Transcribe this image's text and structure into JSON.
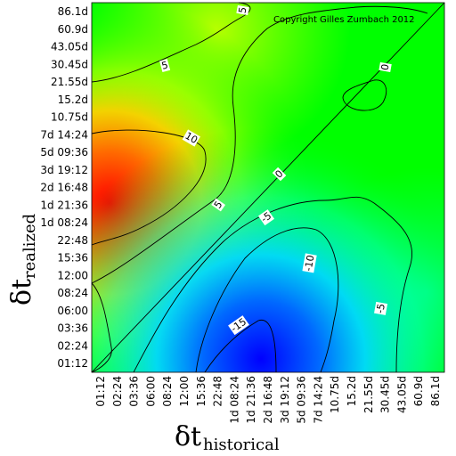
{
  "chart_data": {
    "type": "heatmap",
    "copyright": "Copyright Gilles Zumbach 2012",
    "x_axis": {
      "symbol": "δt",
      "subscript": "historical",
      "ticks": [
        "01:12",
        "02:24",
        "03:36",
        "06:00",
        "08:24",
        "12:00",
        "15:36",
        "22:48",
        "1d 08:24",
        "1d 21:36",
        "2d 16:48",
        "3d 19:12",
        "5d 09:36",
        "7d 14:24",
        "10.75d",
        "15.2d",
        "21.55d",
        "30.45d",
        "43.05d",
        "60.9d",
        "86.1d"
      ]
    },
    "y_axis": {
      "symbol": "δt",
      "subscript": "realized",
      "ticks": [
        "86.1d",
        "60.9d",
        "43.05d",
        "30.45d",
        "21.55d",
        "15.2d",
        "10.75d",
        "7d 14:24",
        "5d 09:36",
        "3d 19:12",
        "2d 16:48",
        "1d 21:36",
        "1d 08:24",
        "22:48",
        "15:36",
        "12:00",
        "08:24",
        "06:00",
        "03:36",
        "02:24",
        "01:12"
      ]
    },
    "contour_levels": [
      "5",
      "10",
      "0",
      "5",
      "-5",
      "-10",
      "-15",
      "-5",
      "0",
      "5"
    ],
    "color_scale": {
      "min": -20,
      "max": 15,
      "colors": [
        "#0000ff",
        "#00ffff",
        "#00ff00",
        "#ffff00",
        "#ff0000"
      ]
    },
    "value_peaks": [
      {
        "x": "1d 21:36",
        "y": "01:12",
        "value": -19
      },
      {
        "x": "01:12",
        "y": "1d 21:36",
        "value": 15
      }
    ],
    "diagonal_value": 0
  }
}
